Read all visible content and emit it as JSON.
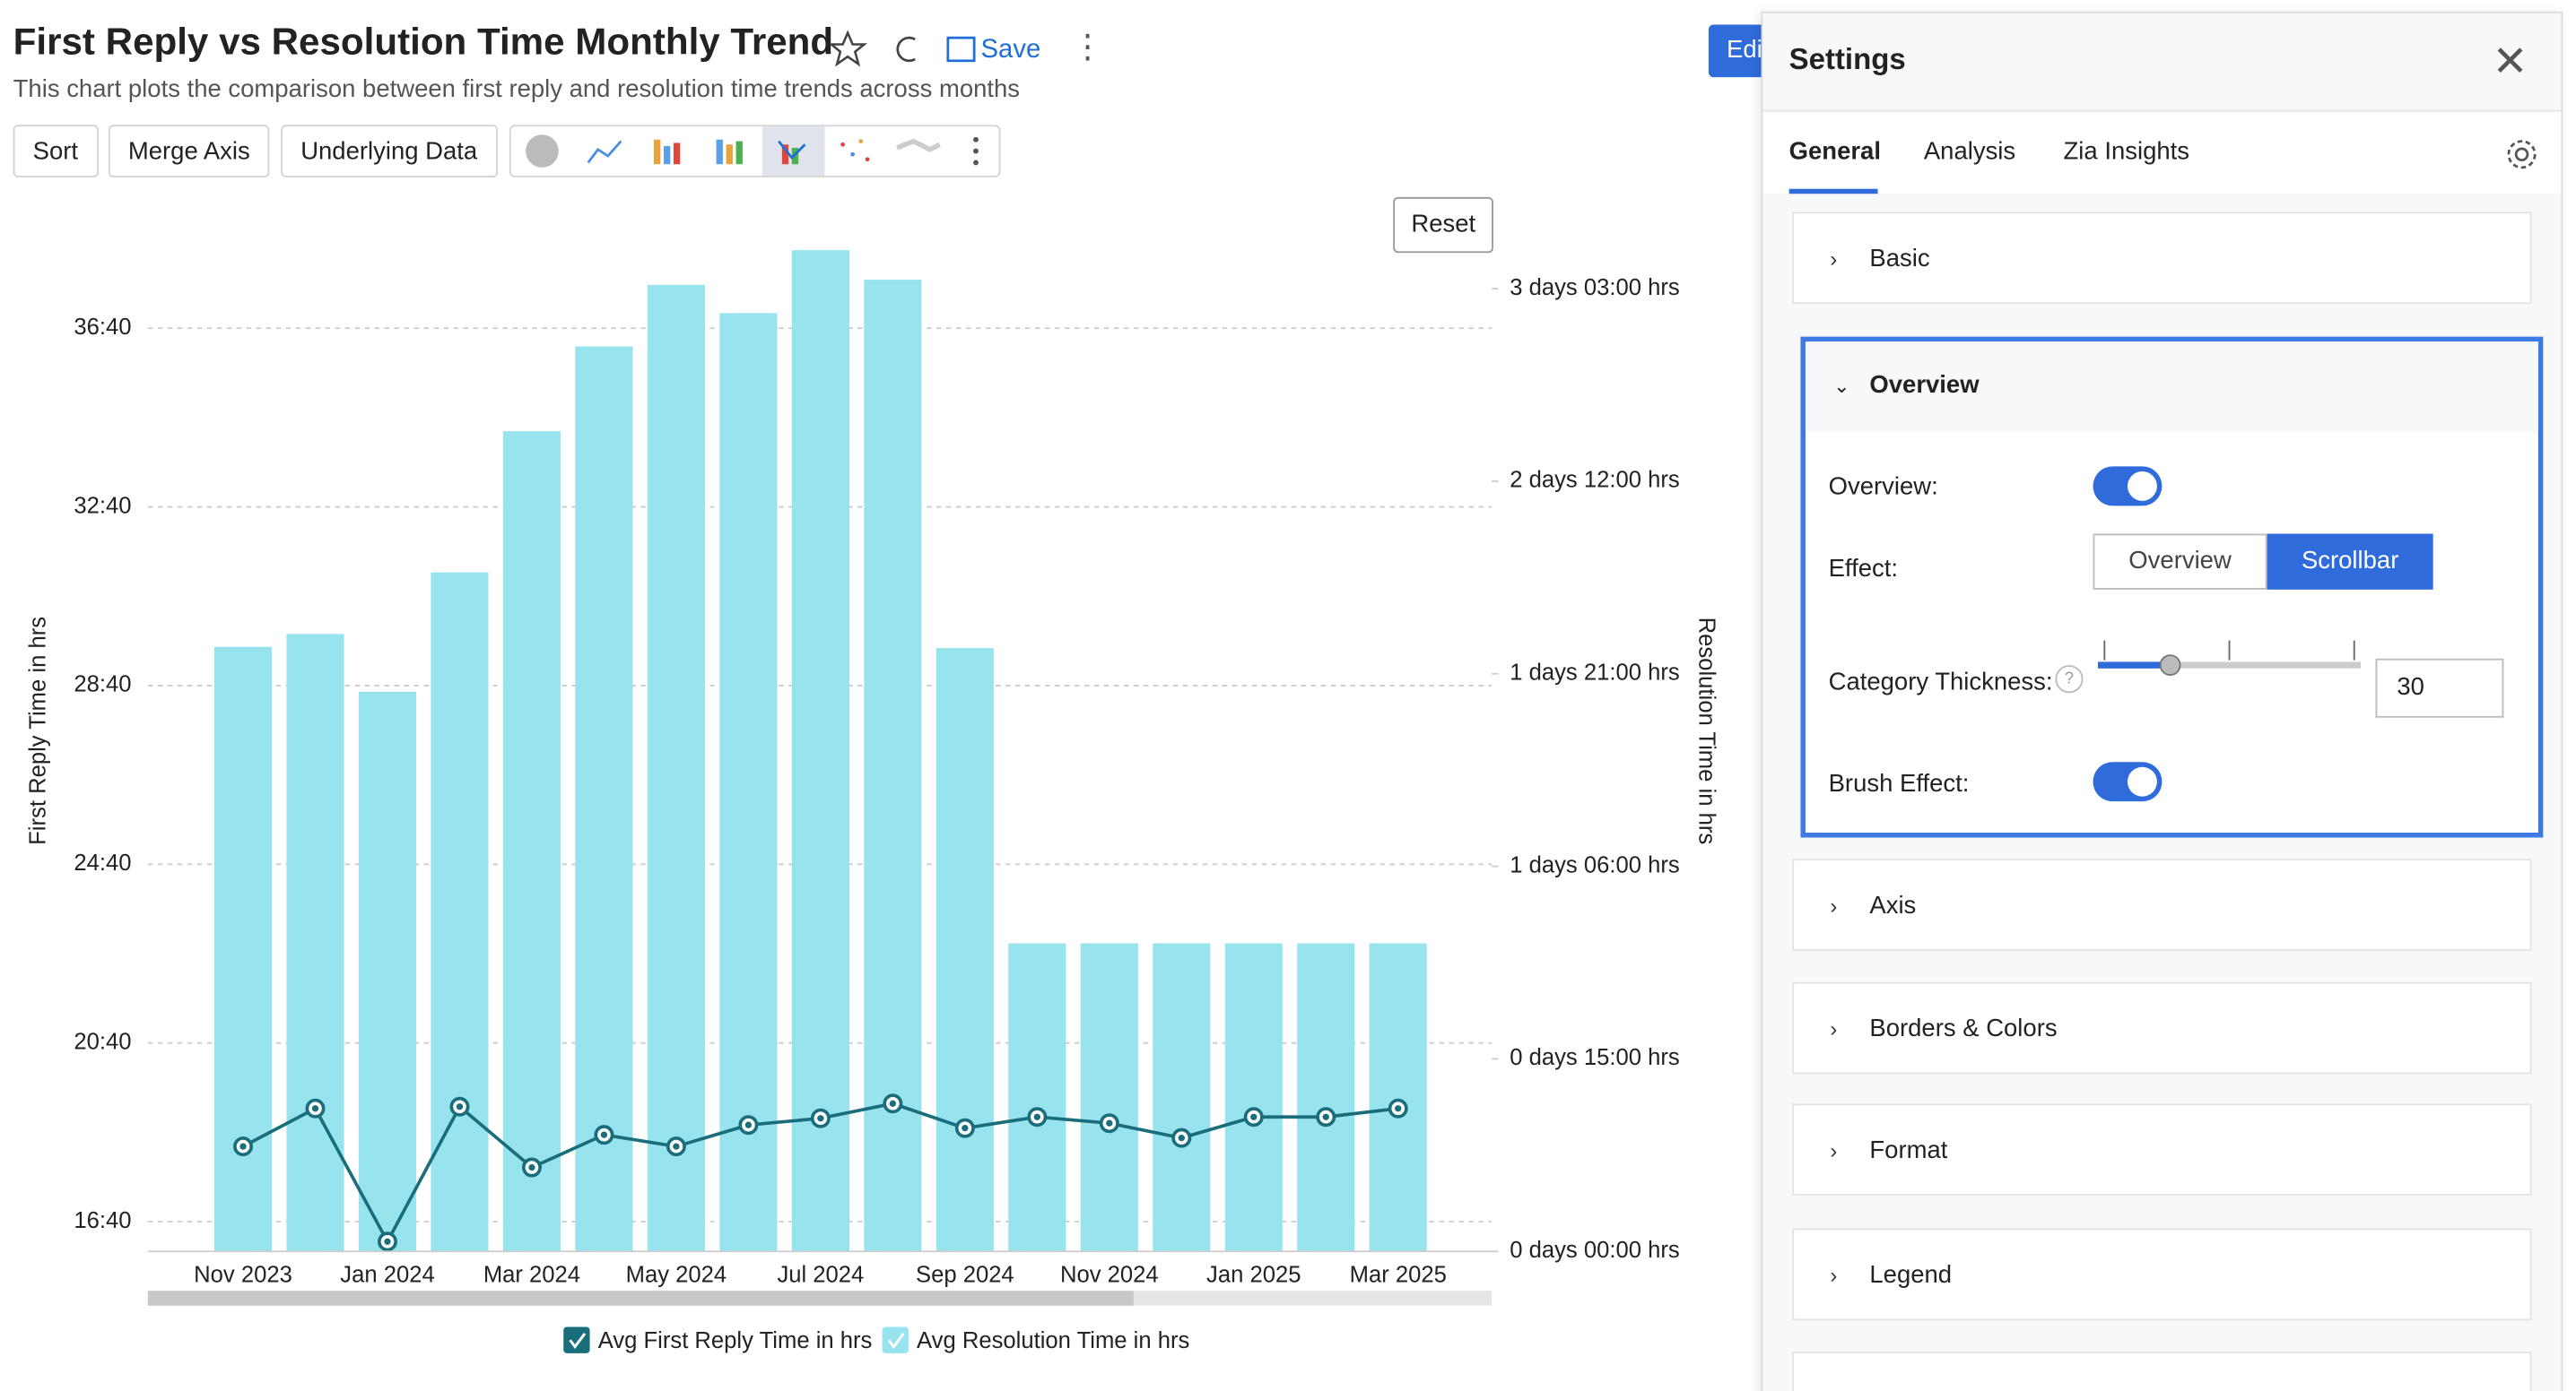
{
  "header": {
    "title": "First Reply vs Resolution Time Monthly Trend",
    "subtitle": "This chart plots the comparison between first reply and resolution time trends across months",
    "save": "Save",
    "edit": "Edi"
  },
  "toolbar": {
    "buttons": [
      "Sort",
      "Merge Axis",
      "Underlying Data"
    ],
    "reset": "Reset"
  },
  "chart_data": {
    "type": "bar",
    "x_label": "",
    "y_label": "First Reply Time in hrs",
    "y2_label": "Resolution Time in hrs",
    "categories": [
      "Nov 2023",
      null,
      "Jan 2024",
      null,
      "Mar 2024",
      null,
      "May 2024",
      null,
      "Jul 2024",
      null,
      "Sep 2024",
      null,
      "Nov 2024",
      null,
      "Jan 2025",
      null,
      "Mar 2025"
    ],
    "series": [
      {
        "name": "Avg First Reply Time in hrs",
        "type": "line",
        "axis": "y",
        "color": "#1a6e7c",
        "values": [
          18.35,
          19.2,
          16.22,
          19.24,
          17.88,
          18.61,
          18.35,
          18.83,
          18.98,
          19.31,
          18.76,
          19.01,
          18.87,
          18.54,
          19.01,
          19.01,
          19.2
        ]
      },
      {
        "name": "Avg Resolution Time in hrs",
        "type": "bar",
        "axis": "y2",
        "color": "#97e3ee",
        "values": [
          47.1,
          48.1,
          43.6,
          52.9,
          63.9,
          70.5,
          75.3,
          73.1,
          78.0,
          75.7,
          47.0,
          24.0,
          24.0,
          24.0,
          24.0,
          24.0,
          24.0
        ]
      }
    ],
    "ylim": [
      16,
      38.5
    ],
    "yticks": [
      {
        "value": 16.667,
        "label": "16:40"
      },
      {
        "value": 20.667,
        "label": "20:40"
      },
      {
        "value": 24.667,
        "label": "24:40"
      },
      {
        "value": 28.667,
        "label": "28:40"
      },
      {
        "value": 32.667,
        "label": "32:40"
      },
      {
        "value": 36.667,
        "label": "36:40"
      }
    ],
    "y2lim": [
      0,
      78.3
    ],
    "y2ticks": [
      {
        "value": 0,
        "label": "0 days 00:00 hrs"
      },
      {
        "value": 15,
        "label": "0 days 15:00 hrs"
      },
      {
        "value": 30,
        "label": "1 days 06:00 hrs"
      },
      {
        "value": 45,
        "label": "1 days 21:00 hrs"
      },
      {
        "value": 60,
        "label": "2 days 12:00 hrs"
      },
      {
        "value": 75,
        "label": "3 days 03:00 hrs"
      }
    ],
    "grid": true,
    "legend": "bottom"
  },
  "settings": {
    "title": "Settings",
    "tabs": [
      "General",
      "Analysis",
      "Zia Insights"
    ],
    "sections": [
      "Basic",
      "Overview",
      "Axis",
      "Borders & Colors",
      "Format",
      "Legend"
    ],
    "overview": {
      "overview_label": "Overview:",
      "effect_label": "Effect:",
      "effect_options": [
        "Overview",
        "Scrollbar"
      ],
      "thickness_label": "Category Thickness:",
      "thickness_value": 30,
      "brush_label": "Brush Effect:"
    }
  }
}
